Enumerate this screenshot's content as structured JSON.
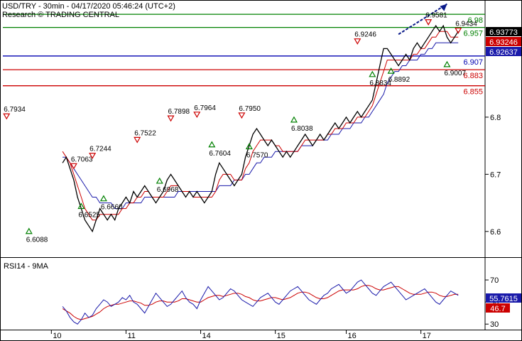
{
  "header": {
    "title": "USD/TRY - 30min - 04/17/2020 05:46:24 (UTC+2)",
    "subtitle": "Research © TRADING CENTRAL"
  },
  "colors": {
    "price": "#000000",
    "ma_fast": "#cc0000",
    "ma_slow": "#1a1aaa",
    "resistance": "#008000",
    "support": "#0000b0",
    "support_red": "#cc0000",
    "forecast": "#0a1a8a",
    "rsi": "#1a1aaa",
    "rsi_ma": "#cc0000"
  },
  "chart_data": [
    {
      "type": "line",
      "name": "price-panel",
      "ylim": [
        6.555,
        7.005
      ],
      "y_ticks": [
        6.6,
        6.7,
        6.8
      ],
      "x_ticks": [
        "10",
        "11",
        "14",
        "15",
        "16",
        "17"
      ],
      "price_series": [
        6.72,
        6.73,
        6.71,
        6.69,
        6.66,
        6.64,
        6.62,
        6.61,
        6.6,
        6.62,
        6.64,
        6.63,
        6.62,
        6.63,
        6.62,
        6.64,
        6.65,
        6.66,
        6.65,
        6.67,
        6.66,
        6.67,
        6.68,
        6.67,
        6.66,
        6.65,
        6.66,
        6.67,
        6.69,
        6.7,
        6.69,
        6.68,
        6.67,
        6.66,
        6.67,
        6.66,
        6.67,
        6.66,
        6.65,
        6.66,
        6.67,
        6.7,
        6.72,
        6.71,
        6.7,
        6.69,
        6.68,
        6.69,
        6.7,
        6.73,
        6.75,
        6.77,
        6.78,
        6.77,
        6.76,
        6.75,
        6.76,
        6.75,
        6.74,
        6.73,
        6.74,
        6.73,
        6.74,
        6.75,
        6.76,
        6.77,
        6.76,
        6.75,
        6.76,
        6.77,
        6.76,
        6.77,
        6.78,
        6.79,
        6.78,
        6.79,
        6.8,
        6.79,
        6.8,
        6.81,
        6.8,
        6.81,
        6.82,
        6.83,
        6.86,
        6.89,
        6.92,
        6.92,
        6.91,
        6.9,
        6.89,
        6.9,
        6.91,
        6.9,
        6.92,
        6.93,
        6.92,
        6.93,
        6.94,
        6.95,
        6.96,
        6.95,
        6.96,
        6.94,
        6.93,
        6.94,
        6.95
      ],
      "ma_fast_series": [
        6.74,
        6.73,
        6.72,
        6.7,
        6.68,
        6.66,
        6.64,
        6.63,
        6.62,
        6.62,
        6.63,
        6.63,
        6.63,
        6.63,
        6.63,
        6.63,
        6.64,
        6.64,
        6.65,
        6.65,
        6.66,
        6.66,
        6.67,
        6.67,
        6.66,
        6.66,
        6.66,
        6.66,
        6.67,
        6.68,
        6.68,
        6.68,
        6.67,
        6.67,
        6.67,
        6.66,
        6.66,
        6.66,
        6.66,
        6.66,
        6.66,
        6.67,
        6.69,
        6.7,
        6.7,
        6.7,
        6.69,
        6.69,
        6.69,
        6.71,
        6.72,
        6.74,
        6.75,
        6.76,
        6.76,
        6.76,
        6.76,
        6.75,
        6.75,
        6.74,
        6.74,
        6.74,
        6.74,
        6.74,
        6.75,
        6.76,
        6.76,
        6.76,
        6.76,
        6.76,
        6.76,
        6.77,
        6.77,
        6.78,
        6.78,
        6.78,
        6.79,
        6.79,
        6.79,
        6.8,
        6.8,
        6.8,
        6.81,
        6.82,
        6.84,
        6.86,
        6.88,
        6.9,
        6.9,
        6.9,
        6.9,
        6.9,
        6.9,
        6.9,
        6.91,
        6.91,
        6.92,
        6.92,
        6.93,
        6.94,
        6.94,
        6.95,
        6.95,
        6.95,
        6.94,
        6.94,
        6.94
      ],
      "ma_slow_series": [
        6.73,
        6.73,
        6.72,
        6.71,
        6.7,
        6.69,
        6.68,
        6.67,
        6.66,
        6.66,
        6.65,
        6.65,
        6.65,
        6.65,
        6.64,
        6.64,
        6.64,
        6.65,
        6.65,
        6.65,
        6.65,
        6.65,
        6.66,
        6.66,
        6.66,
        6.66,
        6.66,
        6.66,
        6.66,
        6.66,
        6.66,
        6.67,
        6.67,
        6.67,
        6.67,
        6.67,
        6.67,
        6.67,
        6.67,
        6.67,
        6.67,
        6.67,
        6.68,
        6.68,
        6.68,
        6.68,
        6.69,
        6.69,
        6.69,
        6.7,
        6.7,
        6.71,
        6.72,
        6.72,
        6.73,
        6.73,
        6.73,
        6.74,
        6.74,
        6.74,
        6.74,
        6.74,
        6.74,
        6.74,
        6.75,
        6.75,
        6.75,
        6.75,
        6.76,
        6.76,
        6.76,
        6.76,
        6.77,
        6.77,
        6.77,
        6.78,
        6.78,
        6.78,
        6.79,
        6.79,
        6.79,
        6.8,
        6.8,
        6.81,
        6.82,
        6.83,
        6.84,
        6.86,
        6.87,
        6.88,
        6.88,
        6.89,
        6.89,
        6.9,
        6.9,
        6.9,
        6.91,
        6.91,
        6.92,
        6.92,
        6.93,
        6.93,
        6.93,
        6.93,
        6.93,
        6.93,
        6.93
      ],
      "forecast": {
        "from": [
          106,
          6.945
        ],
        "to": [
          119,
          6.998
        ]
      },
      "levels": [
        {
          "value": 6.98,
          "label": "6.98",
          "color": "#008000",
          "text_color": "#008000"
        },
        {
          "value": 6.957,
          "label": "6.957",
          "color": "#008000",
          "text_color": "#008000"
        },
        {
          "value": 6.907,
          "label": "6.907",
          "color": "#0000b0",
          "text_color": "#0000b0"
        },
        {
          "value": 6.883,
          "label": "6.883",
          "color": "#cc0000",
          "text_color": "#cc0000"
        },
        {
          "value": 6.855,
          "label": "6.855",
          "color": "#cc0000",
          "text_color": "#cc0000"
        }
      ],
      "price_badges": [
        {
          "value": 6.93773,
          "label": "6.93773",
          "bg": "#000000",
          "fg": "#ffffff"
        },
        {
          "value": 6.93246,
          "label": "6.93246",
          "bg": "#cc0000",
          "fg": "#ffffff"
        },
        {
          "value": 6.92637,
          "label": "6.92637",
          "bg": "#1a1aaa",
          "fg": "#ffffff"
        }
      ],
      "annotations": [
        {
          "x": 1,
          "y": 6.7934,
          "label": "6.7934",
          "kind": "high"
        },
        {
          "x": 7,
          "y": 6.6088,
          "label": "6.6088",
          "kind": "low"
        },
        {
          "x": 19,
          "y": 6.7063,
          "label": "6.7063",
          "kind": "high"
        },
        {
          "x": 21,
          "y": 6.6525,
          "label": "6.6525",
          "kind": "low"
        },
        {
          "x": 24,
          "y": 6.7244,
          "label": "6.7244",
          "kind": "high"
        },
        {
          "x": 27,
          "y": 6.666,
          "label": "6.6660",
          "kind": "low"
        },
        {
          "x": 36,
          "y": 6.7522,
          "label": "6.7522",
          "kind": "high"
        },
        {
          "x": 42,
          "y": 6.6968,
          "label": "6.6968",
          "kind": "low"
        },
        {
          "x": 45,
          "y": 6.7898,
          "label": "6.7898",
          "kind": "high"
        },
        {
          "x": 52,
          "y": 6.7964,
          "label": "6.7964",
          "kind": "high"
        },
        {
          "x": 56,
          "y": 6.7604,
          "label": "6.7604",
          "kind": "low"
        },
        {
          "x": 64,
          "y": 6.795,
          "label": "6.7950",
          "kind": "high"
        },
        {
          "x": 66,
          "y": 6.757,
          "label": "6.7570",
          "kind": "low"
        },
        {
          "x": 78,
          "y": 6.8038,
          "label": "6.8038",
          "kind": "low"
        },
        {
          "x": 95,
          "y": 6.9246,
          "label": "6.9246",
          "kind": "high"
        },
        {
          "x": 99,
          "y": 6.8834,
          "label": "6.8834",
          "kind": "low"
        },
        {
          "x": 104,
          "y": 6.8892,
          "label": "6.8892",
          "kind": "low"
        },
        {
          "x": 114,
          "y": 6.9581,
          "label": "6.9581",
          "kind": "high"
        },
        {
          "x": 119,
          "y": 6.9007,
          "label": "6.9007",
          "kind": "low"
        },
        {
          "x": 122,
          "y": 6.9434,
          "label": "6.9434",
          "kind": "high"
        }
      ]
    },
    {
      "type": "line",
      "name": "rsi-panel",
      "title": "RSI14 - 9MA",
      "ylim": [
        25,
        90
      ],
      "y_ticks": [
        30,
        50,
        70
      ],
      "rsi_series": [
        46,
        42,
        36,
        32,
        30,
        34,
        40,
        36,
        38,
        44,
        48,
        52,
        50,
        46,
        48,
        50,
        54,
        52,
        56,
        50,
        48,
        44,
        40,
        46,
        52,
        58,
        54,
        50,
        46,
        48,
        52,
        56,
        60,
        54,
        50,
        48,
        44,
        52,
        58,
        64,
        60,
        56,
        52,
        54,
        58,
        62,
        60,
        56,
        52,
        50,
        48,
        46,
        50,
        54,
        56,
        58,
        54,
        50,
        48,
        52,
        56,
        60,
        62,
        64,
        60,
        56,
        52,
        50,
        48,
        52,
        56,
        58,
        62,
        64,
        66,
        62,
        58,
        60,
        64,
        68,
        70,
        66,
        62,
        58,
        56,
        60,
        64,
        66,
        68,
        64,
        60,
        56,
        52,
        54,
        56,
        58,
        60,
        62,
        58,
        54,
        50,
        48,
        52,
        56,
        60,
        58,
        56
      ],
      "rsi_ma_series": [
        44,
        42,
        40,
        37,
        35,
        34,
        35,
        36,
        37,
        39,
        41,
        44,
        46,
        47,
        48,
        48,
        49,
        50,
        51,
        51,
        50,
        49,
        47,
        47,
        48,
        50,
        51,
        51,
        50,
        50,
        50,
        51,
        53,
        53,
        52,
        51,
        50,
        50,
        52,
        54,
        55,
        56,
        56,
        55,
        56,
        57,
        58,
        58,
        57,
        55,
        54,
        52,
        51,
        51,
        52,
        53,
        54,
        54,
        53,
        52,
        53,
        54,
        56,
        58,
        59,
        59,
        58,
        56,
        54,
        53,
        53,
        54,
        56,
        58,
        60,
        61,
        61,
        61,
        61,
        62,
        64,
        65,
        65,
        64,
        62,
        61,
        61,
        62,
        63,
        64,
        64,
        62,
        60,
        58,
        57,
        57,
        57,
        58,
        59,
        59,
        58,
        56,
        55,
        55,
        56,
        57,
        57
      ],
      "badges": [
        {
          "value": 55.7615,
          "label": "55.7615",
          "bg": "#1a1aaa",
          "fg": "#ffffff"
        },
        {
          "value": 46.7,
          "label": "46.7",
          "bg": "#cc0000",
          "fg": "#ffffff"
        }
      ]
    }
  ]
}
